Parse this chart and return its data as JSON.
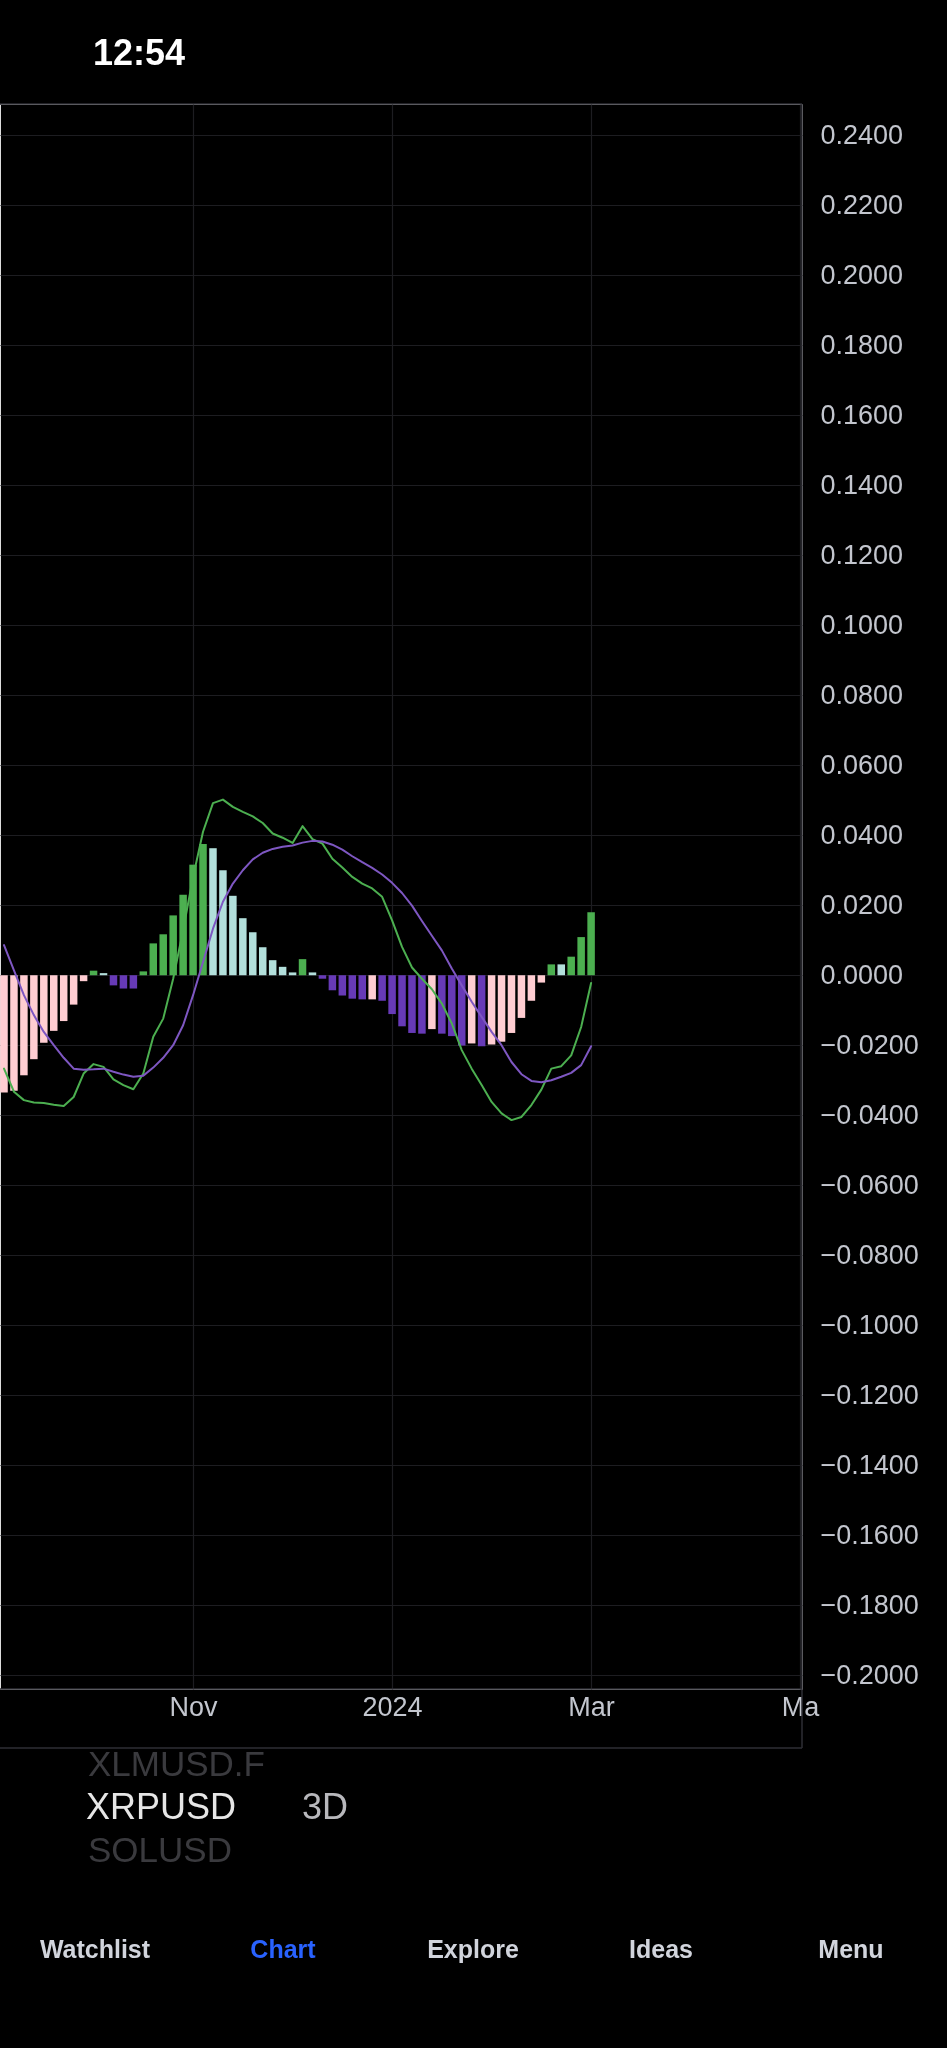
{
  "chart_data": {
    "type": "bar",
    "x": [
      "2023-09-06",
      "2023-09-09",
      "2023-09-12",
      "2023-09-15",
      "2023-09-18",
      "2023-09-21",
      "2023-09-24",
      "2023-09-27",
      "2023-09-30",
      "2023-10-03",
      "2023-10-06",
      "2023-10-09",
      "2023-10-12",
      "2023-10-15",
      "2023-10-18",
      "2023-10-21",
      "2023-10-24",
      "2023-10-27",
      "2023-10-30",
      "2023-11-02",
      "2023-11-05",
      "2023-11-08",
      "2023-11-11",
      "2023-11-14",
      "2023-11-17",
      "2023-11-20",
      "2023-11-23",
      "2023-11-26",
      "2023-11-29",
      "2023-12-02",
      "2023-12-05",
      "2023-12-08",
      "2023-12-11",
      "2023-12-14",
      "2023-12-17",
      "2023-12-20",
      "2023-12-23",
      "2023-12-26",
      "2023-12-29",
      "2024-01-01",
      "2024-01-04",
      "2024-01-07",
      "2024-01-10",
      "2024-01-13",
      "2024-01-16",
      "2024-01-19",
      "2024-01-22",
      "2024-01-25",
      "2024-01-28",
      "2024-01-31",
      "2024-02-03",
      "2024-02-06",
      "2024-02-09",
      "2024-02-12",
      "2024-02-15",
      "2024-02-18",
      "2024-02-21",
      "2024-02-24",
      "2024-02-27",
      "2024-03-01"
    ],
    "series": [
      {
        "colors": [
          "#ffcdd2",
          "#ffcdd2",
          "#ffcdd2",
          "#ffcdd2",
          "#ffcdd2",
          "#ffcdd2",
          "#ffcdd2",
          "#ffcdd2",
          "#ffcdd2",
          "#4caf50",
          "#b2dfdb",
          "#673ab7",
          "#673ab7",
          "#673ab7",
          "#4caf50",
          "#4caf50",
          "#4caf50",
          "#4caf50",
          "#4caf50",
          "#4caf50",
          "#4caf50",
          "#b2dfdb",
          "#b2dfdb",
          "#b2dfdb",
          "#b2dfdb",
          "#b2dfdb",
          "#b2dfdb",
          "#b2dfdb",
          "#b2dfdb",
          "#b2dfdb",
          "#4caf50",
          "#b2dfdb",
          "#673ab7",
          "#673ab7",
          "#673ab7",
          "#673ab7",
          "#673ab7",
          "#ffcdd2",
          "#673ab7",
          "#673ab7",
          "#673ab7",
          "#673ab7",
          "#673ab7",
          "#ffcdd2",
          "#673ab7",
          "#673ab7",
          "#673ab7",
          "#ffcdd2",
          "#673ab7",
          "#ffcdd2",
          "#ffcdd2",
          "#ffcdd2",
          "#ffcdd2",
          "#ffcdd2",
          "#ffcdd2",
          "#4caf50",
          "#b2dfdb",
          "#4caf50",
          "#4caf50",
          "#4caf50"
        ],
        "values": [
          -0.0335,
          -0.033,
          -0.0286,
          -0.024,
          -0.0193,
          -0.0159,
          -0.0131,
          -0.0084,
          -0.0017,
          0.0013,
          0.0006,
          -0.0029,
          -0.0038,
          -0.0038,
          0.0011,
          0.0091,
          0.0117,
          0.0171,
          0.023,
          0.0316,
          0.0375,
          0.0363,
          0.03,
          0.0227,
          0.0163,
          0.0123,
          0.008,
          0.0043,
          0.0024,
          0.0008,
          0.0046,
          0.0008,
          -0.001,
          -0.0043,
          -0.0058,
          -0.0067,
          -0.0069,
          -0.0069,
          -0.0073,
          -0.0111,
          -0.0146,
          -0.0165,
          -0.0167,
          -0.0154,
          -0.0167,
          -0.0174,
          -0.0201,
          -0.0195,
          -0.0203,
          -0.0198,
          -0.019,
          -0.0165,
          -0.0122,
          -0.0073,
          -0.0021,
          0.0031,
          0.0031,
          0.0053,
          0.0109,
          0.018
        ]
      },
      {
        "type": "line",
        "color": "#4caf50",
        "values": [
          -0.0267,
          -0.0333,
          -0.0357,
          -0.0364,
          -0.0365,
          -0.037,
          -0.0374,
          -0.0348,
          -0.0281,
          -0.0254,
          -0.0262,
          -0.0298,
          -0.0314,
          -0.0326,
          -0.0281,
          -0.0176,
          -0.0124,
          -0.001,
          0.0129,
          0.0281,
          0.041,
          0.0492,
          0.0502,
          0.0481,
          0.0467,
          0.0454,
          0.0435,
          0.0405,
          0.0393,
          0.0378,
          0.0426,
          0.0389,
          0.0376,
          0.0333,
          0.0308,
          0.0281,
          0.0262,
          0.0248,
          0.0224,
          0.0157,
          0.0081,
          0.0022,
          -0.001,
          -0.004,
          -0.0081,
          -0.0138,
          -0.0214,
          -0.0267,
          -0.0314,
          -0.0362,
          -0.0395,
          -0.0414,
          -0.0405,
          -0.0371,
          -0.0327,
          -0.0267,
          -0.026,
          -0.0229,
          -0.0148,
          -0.0022
        ]
      },
      {
        "type": "line",
        "color": "#7e57c2",
        "values": [
          0.0086,
          0.0014,
          -0.0057,
          -0.0114,
          -0.0162,
          -0.02,
          -0.0236,
          -0.0267,
          -0.027,
          -0.0269,
          -0.0267,
          -0.0276,
          -0.0284,
          -0.029,
          -0.0287,
          -0.0264,
          -0.0236,
          -0.02,
          -0.0143,
          -0.0057,
          0.0038,
          0.0133,
          0.021,
          0.0262,
          0.03,
          0.0331,
          0.035,
          0.0361,
          0.0367,
          0.0371,
          0.0379,
          0.0384,
          0.0382,
          0.0373,
          0.0359,
          0.034,
          0.0323,
          0.0307,
          0.0288,
          0.0264,
          0.0235,
          0.0199,
          0.0155,
          0.0113,
          0.0071,
          0.0019,
          -0.0029,
          -0.0076,
          -0.0119,
          -0.0162,
          -0.02,
          -0.0248,
          -0.0283,
          -0.0302,
          -0.0306,
          -0.03,
          -0.029,
          -0.0279,
          -0.0257,
          -0.0203
        ]
      }
    ],
    "xlim": [
      "2023-09-04T19:00",
      "2024-05-03T14:00"
    ],
    "xticks": [
      {
        "value": "2023-11-02",
        "label": "Nov"
      },
      {
        "value": "2024-01-01",
        "label": "2024"
      },
      {
        "value": "2024-03-01",
        "label": "Mar"
      },
      {
        "value": "2024-05-03",
        "label": "Ma"
      }
    ],
    "ylim": [
      -0.204,
      0.249
    ],
    "yticks": [
      {
        "value": 0.24,
        "label": "0.2400"
      },
      {
        "value": 0.22,
        "label": "0.2200"
      },
      {
        "value": 0.2,
        "label": "0.2000"
      },
      {
        "value": 0.18,
        "label": "0.1800"
      },
      {
        "value": 0.16,
        "label": "0.1600"
      },
      {
        "value": 0.14,
        "label": "0.1400"
      },
      {
        "value": 0.12,
        "label": "0.1200"
      },
      {
        "value": 0.1,
        "label": "0.1000"
      },
      {
        "value": 0.08,
        "label": "0.0800"
      },
      {
        "value": 0.06,
        "label": "0.0600"
      },
      {
        "value": 0.04,
        "label": "0.0400"
      },
      {
        "value": 0.02,
        "label": "0.0200"
      },
      {
        "value": 0,
        "label": "0.0000"
      },
      {
        "value": -0.02,
        "label": "−0.0200"
      },
      {
        "value": -0.04,
        "label": "−0.0400"
      },
      {
        "value": -0.06,
        "label": "−0.0600"
      },
      {
        "value": -0.08,
        "label": "−0.0800"
      },
      {
        "value": -0.1,
        "label": "−0.1000"
      },
      {
        "value": -0.12,
        "label": "−0.1200"
      },
      {
        "value": -0.14,
        "label": "−0.1400"
      },
      {
        "value": -0.16,
        "label": "−0.1600"
      },
      {
        "value": -0.18,
        "label": "−0.1800"
      },
      {
        "value": -0.2,
        "label": "−0.2000"
      }
    ],
    "grid": true,
    "line_style": "solid",
    "annotations": [
      "12:54",
      "XLMUSD.F",
      "XRPUSD",
      "3D",
      "SOLUSD",
      "Watchlist",
      "Chart",
      "Explore",
      "Ideas",
      "Menu"
    ]
  }
}
